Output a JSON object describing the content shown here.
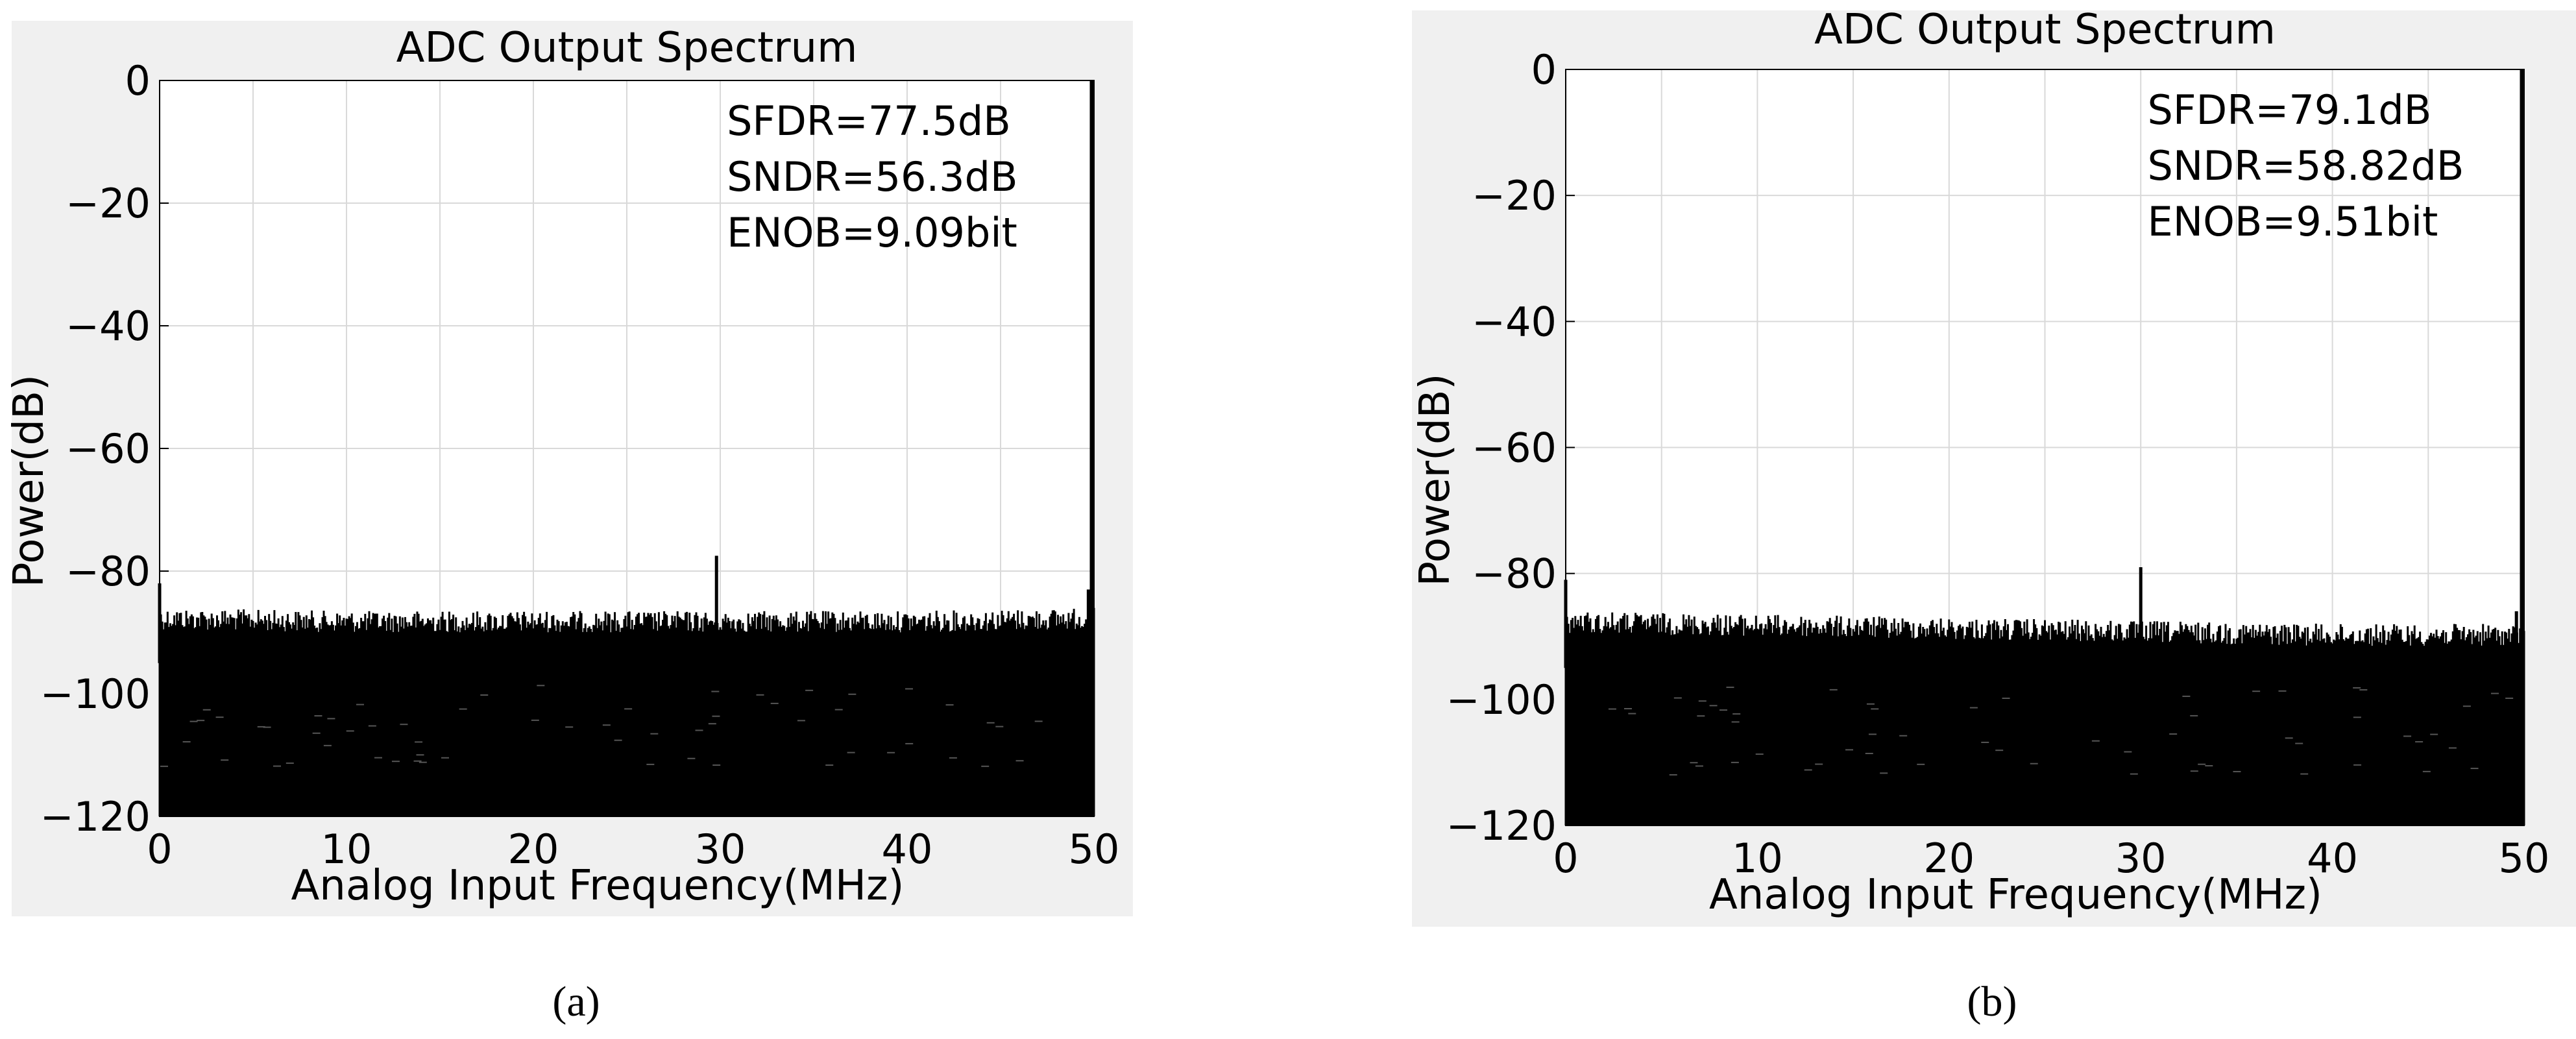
{
  "chart_data": [
    {
      "type": "bar",
      "panel_label": "(a)",
      "title": "ADC Output Spectrum",
      "xlabel": "Analog Input Frequency(MHz)",
      "ylabel": "Power(dB)",
      "xlim": [
        0,
        50
      ],
      "ylim": [
        -120,
        0
      ],
      "xticks": [
        "0",
        "10",
        "20",
        "30",
        "40",
        "50"
      ],
      "yticks": [
        "0",
        "−20",
        "−40",
        "−60",
        "−80",
        "−100",
        "−120"
      ],
      "grid": true,
      "annotations": [
        "SFDR=77.5dB",
        "SNDR=56.3dB",
        "ENOB=9.09bit"
      ],
      "bar_color": "#000000",
      "series": [
        {
          "signal": {
            "x": 50,
            "y": 0
          },
          "spurs": [
            {
              "x": 0,
              "y": -82
            },
            {
              "x": 29.8,
              "y": -77.5
            },
            {
              "x": 49.7,
              "y": -83
            }
          ],
          "noise_envelope": {
            "x": [
              0,
              10,
              20,
              30,
              40,
              50
            ],
            "y": [
              -86,
              -86.5,
              -86.5,
              -86.5,
              -86.5,
              -86
            ]
          },
          "noise_floor_min": -120
        }
      ]
    },
    {
      "type": "bar",
      "panel_label": "(b)",
      "title": "ADC Output Spectrum",
      "xlabel": "Analog Input Frequency(MHz)",
      "ylabel": "Power(dB)",
      "xlim": [
        0,
        50
      ],
      "ylim": [
        -120,
        0
      ],
      "xticks": [
        "0",
        "10",
        "20",
        "30",
        "40",
        "50"
      ],
      "yticks": [
        "0",
        "−20",
        "−40",
        "−60",
        "−80",
        "−100",
        "−120"
      ],
      "grid": true,
      "annotations": [
        "SFDR=79.1dB",
        "SNDR=58.82dB",
        "ENOB=9.51bit"
      ],
      "bar_color": "#000000",
      "series": [
        {
          "signal": {
            "x": 50,
            "y": 0
          },
          "spurs": [
            {
              "x": 0,
              "y": -81
            },
            {
              "x": 30,
              "y": -79
            },
            {
              "x": 49.6,
              "y": -86
            }
          ],
          "noise_envelope": {
            "x": [
              0,
              10,
              20,
              30,
              40,
              50
            ],
            "y": [
              -86,
              -86.5,
              -87,
              -87.5,
              -88,
              -88
            ]
          },
          "noise_floor_min": -120
        }
      ]
    }
  ]
}
